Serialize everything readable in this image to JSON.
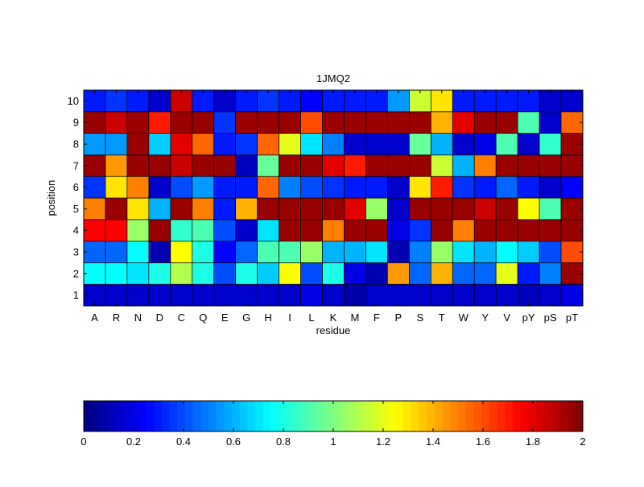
{
  "chart_data": {
    "type": "heatmap",
    "title": "1JMQ2",
    "xlabel": "residue",
    "ylabel": "position",
    "x_categories": [
      "A",
      "R",
      "N",
      "D",
      "C",
      "Q",
      "E",
      "G",
      "H",
      "I",
      "L",
      "K",
      "M",
      "F",
      "P",
      "S",
      "T",
      "W",
      "Y",
      "V",
      "pY",
      "pS",
      "pT"
    ],
    "y_categories": [
      "1",
      "2",
      "3",
      "4",
      "5",
      "6",
      "7",
      "8",
      "9",
      "10"
    ],
    "value_range": [
      0,
      2
    ],
    "colormap": "jet",
    "colorbar": {
      "placement": "bottom",
      "ticks": [
        0,
        0.2,
        0.4,
        0.6,
        0.8,
        1,
        1.2,
        1.4,
        1.6,
        1.8,
        2
      ],
      "tick_labels": [
        "0",
        "0.2",
        "0.4",
        "0.6",
        "0.8",
        "1",
        "1.2",
        "1.4",
        "1.6",
        "1.8",
        "2"
      ]
    },
    "values_by_position": {
      "1": [
        0.15,
        0.15,
        0.15,
        0.15,
        0.15,
        0.15,
        0.15,
        0.15,
        0.15,
        0.15,
        0.2,
        0.15,
        0.08,
        0.15,
        0.15,
        0.15,
        0.15,
        0.15,
        0.15,
        0.15,
        0.12,
        0.15,
        0.2
      ],
      "2": [
        0.75,
        0.75,
        0.7,
        0.8,
        1.1,
        0.8,
        0.4,
        0.8,
        0.65,
        1.25,
        0.4,
        0.8,
        0.2,
        0.1,
        1.45,
        0.45,
        1.4,
        0.45,
        0.45,
        1.2,
        0.3,
        0.5,
        1.95
      ],
      "3": [
        0.45,
        0.45,
        0.75,
        0.1,
        1.25,
        0.8,
        0.25,
        0.45,
        0.9,
        0.9,
        1.05,
        0.6,
        0.6,
        0.7,
        0.1,
        0.5,
        1.05,
        0.7,
        0.6,
        0.75,
        0.65,
        0.4,
        1.6
      ],
      "4": [
        1.75,
        1.75,
        1.05,
        1.95,
        0.85,
        0.9,
        0.4,
        0.15,
        0.7,
        1.95,
        1.95,
        1.5,
        1.95,
        1.95,
        0.2,
        0.35,
        1.95,
        1.5,
        1.95,
        1.95,
        1.95,
        1.95,
        1.95
      ],
      "5": [
        1.5,
        1.95,
        1.3,
        0.6,
        1.95,
        1.5,
        0.3,
        1.4,
        1.95,
        1.95,
        1.95,
        1.95,
        1.8,
        1.05,
        0.15,
        1.95,
        1.95,
        1.95,
        1.85,
        1.95,
        1.25,
        0.9,
        1.95
      ],
      "6": [
        0.35,
        1.3,
        1.5,
        0.15,
        0.4,
        0.55,
        0.3,
        0.3,
        1.55,
        0.5,
        0.4,
        0.35,
        0.3,
        0.3,
        0.15,
        1.3,
        1.7,
        0.35,
        0.3,
        0.45,
        0.3,
        0.15,
        0.25
      ],
      "7": [
        1.95,
        1.45,
        1.95,
        1.95,
        1.85,
        1.95,
        1.95,
        0.12,
        0.95,
        1.95,
        1.95,
        1.8,
        1.7,
        1.95,
        1.95,
        1.95,
        1.15,
        0.6,
        1.5,
        1.95,
        1.95,
        1.95,
        1.95
      ],
      "8": [
        0.55,
        0.55,
        1.95,
        0.65,
        1.8,
        1.55,
        0.3,
        0.35,
        1.55,
        1.2,
        0.7,
        0.5,
        0.15,
        0.15,
        0.15,
        0.95,
        0.6,
        0.15,
        0.2,
        0.9,
        0.15,
        0.85,
        1.95
      ],
      "9": [
        1.95,
        1.85,
        1.95,
        1.7,
        1.95,
        1.95,
        0.35,
        1.95,
        1.95,
        1.95,
        1.6,
        1.95,
        1.95,
        1.95,
        1.95,
        1.95,
        1.4,
        1.8,
        1.95,
        1.95,
        0.9,
        0.15,
        1.55
      ],
      "10": [
        0.3,
        0.35,
        0.3,
        0.15,
        1.85,
        0.3,
        0.15,
        0.3,
        0.35,
        0.3,
        0.25,
        0.3,
        0.3,
        0.3,
        0.55,
        1.15,
        1.3,
        0.3,
        0.3,
        0.3,
        0.3,
        0.15,
        0.15
      ]
    }
  }
}
